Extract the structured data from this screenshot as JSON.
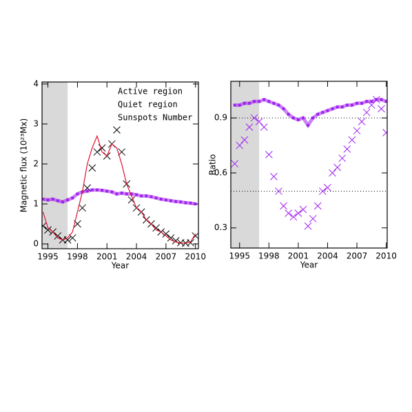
{
  "chart_data": [
    {
      "type": "line",
      "xlabel": "Year",
      "ylabel": "Magnetic flux (10²³Mx)",
      "xlim": [
        1994.4,
        2010.3
      ],
      "ylim": [
        -0.12,
        4.05
      ],
      "xticks": [
        1995,
        1998,
        2001,
        2004,
        2007,
        2010
      ],
      "yticks": [
        0,
        1,
        2,
        3,
        4
      ],
      "shaded_span": [
        1994.4,
        1997
      ],
      "legend": "upper right",
      "x": [
        1994.5,
        1995,
        1995.5,
        1996,
        1996.5,
        1997,
        1997.5,
        1998,
        1998.5,
        1999,
        1999.5,
        2000,
        2000.5,
        2001,
        2001.5,
        2002,
        2002.5,
        2003,
        2003.5,
        2004,
        2004.5,
        2005,
        2005.5,
        2006,
        2006.5,
        2007,
        2007.5,
        2008,
        2008.5,
        2009,
        2009.5,
        2010
      ],
      "series": [
        {
          "name": "Active region",
          "color": "#000000",
          "marker": "x",
          "values": [
            0.45,
            0.35,
            0.3,
            0.2,
            0.1,
            0.1,
            0.15,
            0.5,
            0.9,
            1.4,
            1.9,
            2.3,
            2.4,
            2.2,
            2.5,
            2.85,
            2.3,
            1.5,
            1.1,
            0.9,
            0.8,
            0.6,
            0.5,
            0.4,
            0.3,
            0.25,
            0.15,
            0.08,
            0.03,
            0.02,
            0.03,
            0.2
          ]
        },
        {
          "name": "Quiet region",
          "color": "#a020f0",
          "marker": "band",
          "values": [
            1.12,
            1.1,
            1.12,
            1.08,
            1.05,
            1.1,
            1.15,
            1.25,
            1.3,
            1.32,
            1.35,
            1.35,
            1.34,
            1.32,
            1.3,
            1.25,
            1.27,
            1.25,
            1.25,
            1.23,
            1.2,
            1.2,
            1.18,
            1.15,
            1.12,
            1.1,
            1.08,
            1.06,
            1.05,
            1.03,
            1.02,
            1.0
          ]
        },
        {
          "name": "Sunspots Number",
          "color": "#e0102f",
          "marker": "line",
          "values": [
            0.8,
            0.4,
            0.3,
            0.15,
            0.1,
            0.15,
            0.3,
            0.8,
            1.3,
            2.0,
            2.4,
            2.7,
            2.3,
            2.2,
            2.5,
            2.4,
            2.0,
            1.5,
            1.2,
            0.9,
            0.8,
            0.6,
            0.5,
            0.35,
            0.3,
            0.2,
            0.1,
            0.05,
            0.02,
            0.02,
            0.05,
            0.25
          ]
        }
      ]
    },
    {
      "type": "line",
      "xlabel": "Year",
      "ylabel": "Ratio",
      "xlim": [
        1994.1,
        2010.1
      ],
      "ylim": [
        0.19,
        1.1
      ],
      "xticks": [
        1995,
        1998,
        2001,
        2004,
        2007,
        2010
      ],
      "yticks": [
        0.3,
        0.6,
        0.9
      ],
      "shaded_span": [
        1994.1,
        1997
      ],
      "reference_lines": [
        0.9,
        0.5
      ],
      "x": [
        1994.5,
        1995,
        1995.5,
        1996,
        1996.5,
        1997,
        1997.5,
        1998,
        1998.5,
        1999,
        1999.5,
        2000,
        2000.5,
        2001,
        2001.5,
        2002,
        2002.5,
        2003,
        2003.5,
        2004,
        2004.5,
        2005,
        2005.5,
        2006,
        2006.5,
        2007,
        2007.5,
        2008,
        2008.5,
        2009,
        2009.5,
        2010
      ],
      "series": [
        {
          "color": "#a020f0",
          "marker": "band",
          "values": [
            0.97,
            0.97,
            0.98,
            0.98,
            0.99,
            0.99,
            1.0,
            0.99,
            0.98,
            0.97,
            0.95,
            0.92,
            0.9,
            0.89,
            0.9,
            0.86,
            0.9,
            0.92,
            0.93,
            0.94,
            0.95,
            0.96,
            0.96,
            0.97,
            0.97,
            0.98,
            0.98,
            0.99,
            0.99,
            1.0,
            1.0,
            0.99
          ]
        },
        {
          "color": "#a020f0",
          "marker": "x",
          "values": [
            0.65,
            0.75,
            0.78,
            0.85,
            0.9,
            0.88,
            0.85,
            0.7,
            0.58,
            0.5,
            0.42,
            0.38,
            0.36,
            0.38,
            0.4,
            0.31,
            0.35,
            0.42,
            0.5,
            0.52,
            0.6,
            0.63,
            0.68,
            0.73,
            0.78,
            0.83,
            0.88,
            0.93,
            0.97,
            1.0,
            0.95,
            0.82
          ]
        }
      ]
    }
  ]
}
